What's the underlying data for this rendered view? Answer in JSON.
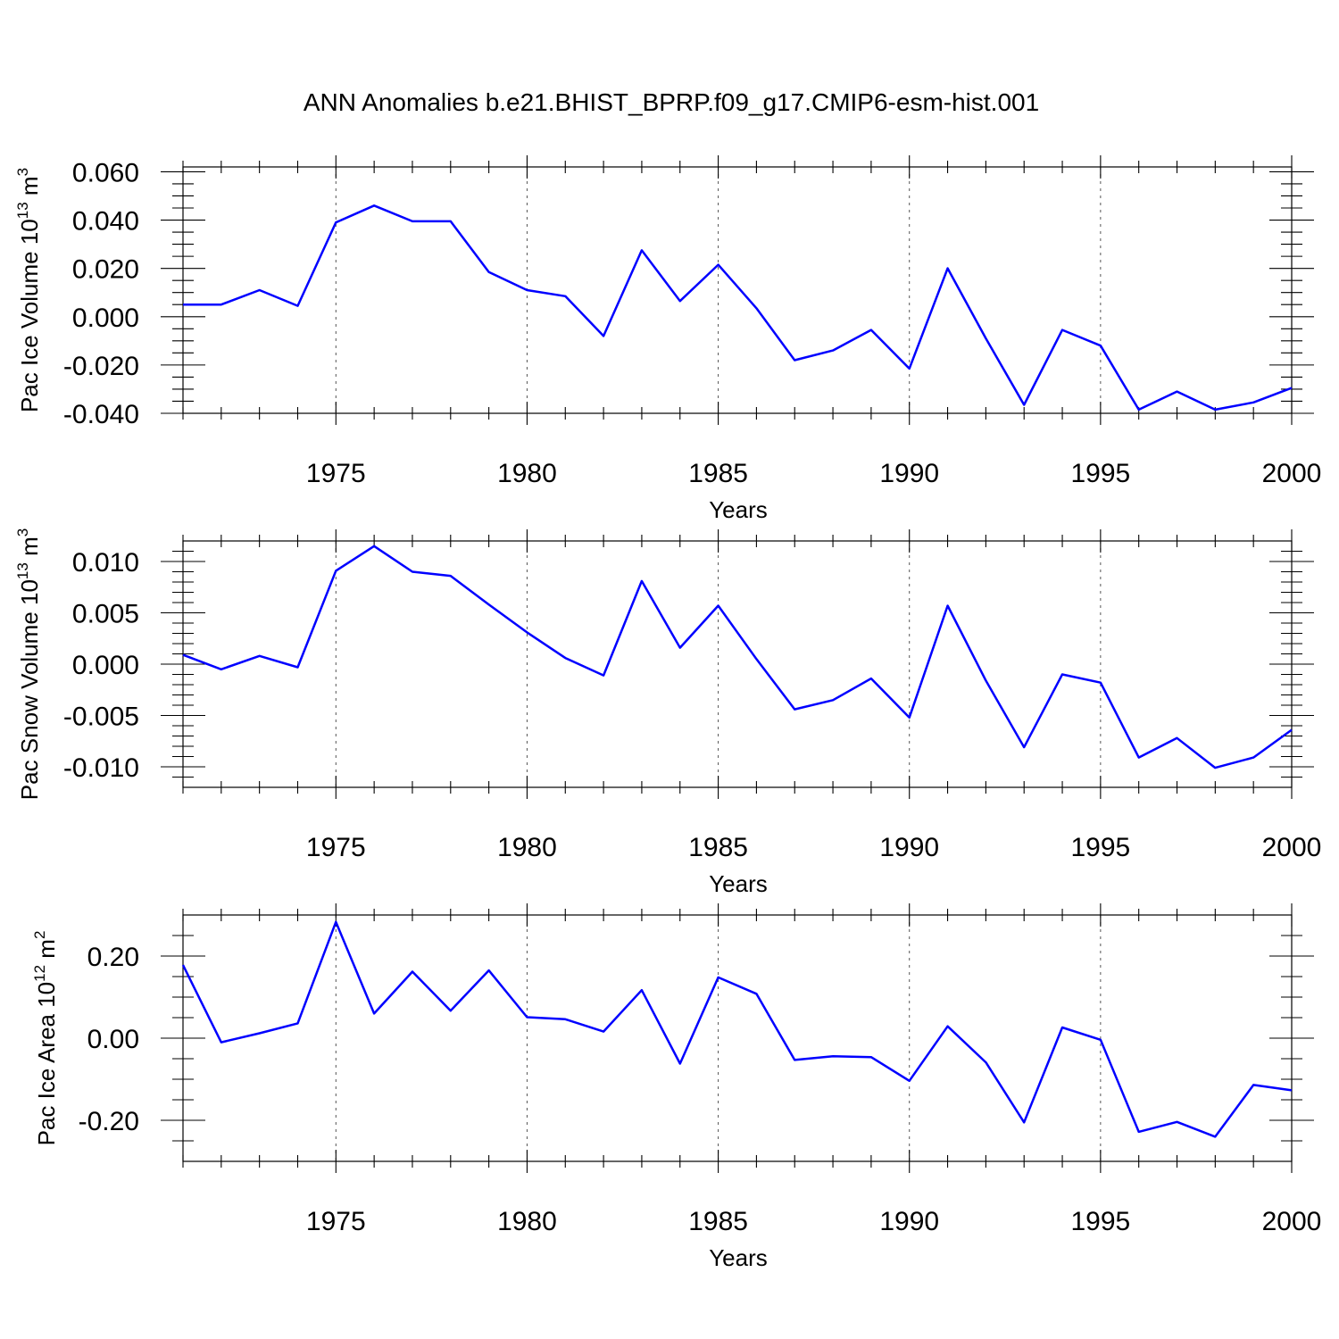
{
  "title": "ANN Anomalies b.e21.BHIST_BPRP.f09_g17.CMIP6-esm-hist.001",
  "chart_data": [
    {
      "type": "line",
      "ylabel_main": "Pac Ice Volume 10",
      "ylabel_exp": "13",
      "ylabel_unit": " m",
      "ylabel_unit_exp": "3",
      "xlabel": "Years",
      "xlim": [
        1971,
        2000
      ],
      "ylim": [
        -0.04,
        0.062
      ],
      "yticks": [
        -0.04,
        -0.02,
        0.0,
        0.02,
        0.04,
        0.06
      ],
      "ytick_labels": [
        "-0.040",
        "-0.020",
        "0.000",
        "0.020",
        "0.040",
        "0.060"
      ],
      "yminor": [
        -0.035,
        -0.03,
        -0.025,
        -0.015,
        -0.01,
        -0.005,
        0.005,
        0.01,
        0.015,
        0.025,
        0.03,
        0.035,
        0.045,
        0.05,
        0.055
      ],
      "xticks": [
        1975,
        1980,
        1985,
        1990,
        1995,
        2000
      ],
      "xtick_labels": [
        "1975",
        "1980",
        "1985",
        "1990",
        "1995",
        "2000"
      ],
      "x": [
        1971,
        1972,
        1973,
        1974,
        1975,
        1976,
        1977,
        1978,
        1979,
        1980,
        1981,
        1982,
        1983,
        1984,
        1985,
        1986,
        1987,
        1988,
        1989,
        1990,
        1991,
        1992,
        1993,
        1994,
        1995,
        1996,
        1997,
        1998,
        1999,
        2000
      ],
      "values": [
        0.005,
        0.005,
        0.011,
        0.0045,
        0.039,
        0.046,
        0.0395,
        0.0395,
        0.0185,
        0.011,
        0.0085,
        -0.008,
        0.0275,
        0.0065,
        0.0215,
        0.0035,
        -0.018,
        -0.014,
        -0.0055,
        -0.0215,
        0.02,
        -0.009,
        -0.0365,
        -0.0055,
        -0.012,
        -0.0385,
        -0.031,
        -0.0385,
        -0.0355,
        -0.0295
      ]
    },
    {
      "type": "line",
      "ylabel_main": "Pac Snow Volume 10",
      "ylabel_exp": "13",
      "ylabel_unit": " m",
      "ylabel_unit_exp": "3",
      "xlabel": "Years",
      "xlim": [
        1971,
        2000
      ],
      "ylim": [
        -0.012,
        0.012
      ],
      "yticks": [
        -0.01,
        -0.005,
        0.0,
        0.005,
        0.01
      ],
      "ytick_labels": [
        "-0.010",
        "-0.005",
        "0.000",
        "0.005",
        "0.010"
      ],
      "yminor": [
        -0.011,
        -0.009,
        -0.008,
        -0.007,
        -0.006,
        -0.004,
        -0.003,
        -0.002,
        -0.001,
        0.001,
        0.002,
        0.003,
        0.004,
        0.006,
        0.007,
        0.008,
        0.009,
        0.011
      ],
      "xticks": [
        1975,
        1980,
        1985,
        1990,
        1995,
        2000
      ],
      "xtick_labels": [
        "1975",
        "1980",
        "1985",
        "1990",
        "1995",
        "2000"
      ],
      "x": [
        1971,
        1972,
        1973,
        1974,
        1975,
        1976,
        1977,
        1978,
        1979,
        1980,
        1981,
        1982,
        1983,
        1984,
        1985,
        1986,
        1987,
        1988,
        1989,
        1990,
        1991,
        1992,
        1993,
        1994,
        1995,
        1996,
        1997,
        1998,
        1999,
        2000
      ],
      "values": [
        0.0009,
        -0.0005,
        0.0008,
        -0.0003,
        0.0091,
        0.0115,
        0.009,
        0.0086,
        0.0058,
        0.0031,
        0.0006,
        -0.0011,
        0.0081,
        0.0016,
        0.0057,
        0.0005,
        -0.0044,
        -0.0035,
        -0.0014,
        -0.0052,
        0.0057,
        -0.0016,
        -0.0081,
        -0.001,
        -0.0018,
        -0.0091,
        -0.0072,
        -0.0101,
        -0.0091,
        -0.0064
      ]
    },
    {
      "type": "line",
      "ylabel_main": "Pac Ice Area 10",
      "ylabel_exp": "12",
      "ylabel_unit": " m",
      "ylabel_unit_exp": "2",
      "xlabel": "Years",
      "xlim": [
        1971,
        2000
      ],
      "ylim": [
        -0.3,
        0.3
      ],
      "yticks": [
        -0.2,
        0.0,
        0.2
      ],
      "ytick_labels": [
        "-0.20",
        "0.00",
        "0.20"
      ],
      "yminor": [
        -0.25,
        -0.15,
        -0.1,
        -0.05,
        0.05,
        0.1,
        0.15,
        0.25
      ],
      "xticks": [
        1975,
        1980,
        1985,
        1990,
        1995,
        2000
      ],
      "xtick_labels": [
        "1975",
        "1980",
        "1985",
        "1990",
        "1995",
        "2000"
      ],
      "x": [
        1971,
        1972,
        1973,
        1974,
        1975,
        1976,
        1977,
        1978,
        1979,
        1980,
        1981,
        1982,
        1983,
        1984,
        1985,
        1986,
        1987,
        1988,
        1989,
        1990,
        1991,
        1992,
        1993,
        1994,
        1995,
        1996,
        1997,
        1998,
        1999,
        2000
      ],
      "values": [
        0.178,
        -0.01,
        0.012,
        0.036,
        0.283,
        0.06,
        0.162,
        0.067,
        0.165,
        0.051,
        0.046,
        0.016,
        0.117,
        -0.062,
        0.148,
        0.108,
        -0.053,
        -0.044,
        -0.046,
        -0.104,
        0.029,
        -0.059,
        -0.205,
        0.026,
        -0.004,
        -0.228,
        -0.204,
        -0.24,
        -0.114,
        -0.127
      ]
    }
  ]
}
